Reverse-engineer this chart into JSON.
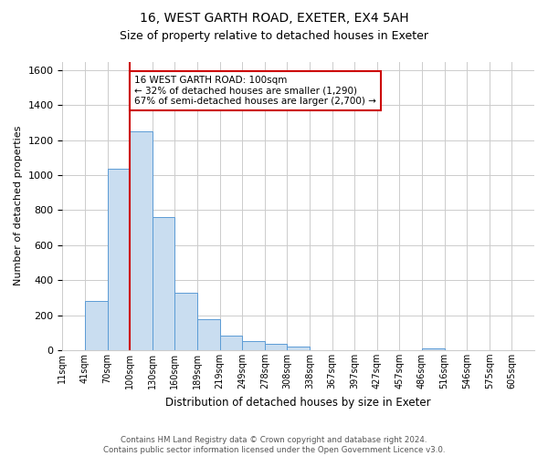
{
  "title": "16, WEST GARTH ROAD, EXETER, EX4 5AH",
  "subtitle": "Size of property relative to detached houses in Exeter",
  "xlabel": "Distribution of detached houses by size in Exeter",
  "ylabel": "Number of detached properties",
  "bar_color": "#c9ddf0",
  "bar_edgecolor": "#5b9bd5",
  "bin_labels": [
    "11sqm",
    "41sqm",
    "70sqm",
    "100sqm",
    "130sqm",
    "160sqm",
    "189sqm",
    "219sqm",
    "249sqm",
    "278sqm",
    "308sqm",
    "338sqm",
    "367sqm",
    "397sqm",
    "427sqm",
    "457sqm",
    "486sqm",
    "516sqm",
    "546sqm",
    "575sqm",
    "605sqm"
  ],
  "bar_heights": [
    0,
    280,
    1035,
    1250,
    760,
    330,
    175,
    85,
    50,
    38,
    20,
    0,
    0,
    0,
    0,
    0,
    10,
    0,
    0,
    0,
    0
  ],
  "ylim": [
    0,
    1650
  ],
  "yticks": [
    0,
    200,
    400,
    600,
    800,
    1000,
    1200,
    1400,
    1600
  ],
  "vline_x": 3,
  "vline_color": "#cc0000",
  "annotation_line1": "16 WEST GARTH ROAD: 100sqm",
  "annotation_line2": "← 32% of detached houses are smaller (1,290)",
  "annotation_line3": "67% of semi-detached houses are larger (2,700) →",
  "annotation_box_edgecolor": "#cc0000",
  "footer_line1": "Contains HM Land Registry data © Crown copyright and database right 2024.",
  "footer_line2": "Contains public sector information licensed under the Open Government Licence v3.0.",
  "background_color": "#ffffff",
  "grid_color": "#cccccc"
}
